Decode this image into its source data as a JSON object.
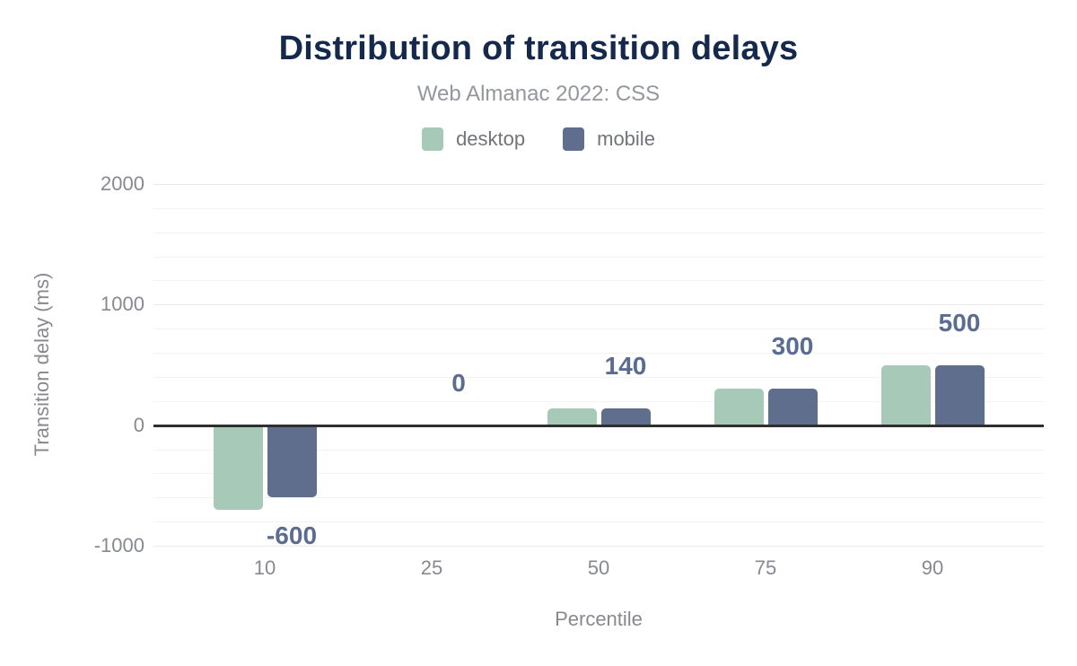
{
  "header": {
    "title": "Distribution of transition delays",
    "subtitle": "Web Almanac 2022: CSS"
  },
  "chart_data": {
    "type": "bar",
    "title": "Distribution of transition delays",
    "subtitle": "Web Almanac 2022: CSS",
    "categories": [
      "10",
      "25",
      "50",
      "75",
      "90"
    ],
    "series": [
      {
        "name": "desktop",
        "color": "#a6c9b8",
        "values": [
          -700,
          0,
          140,
          300,
          500
        ]
      },
      {
        "name": "mobile",
        "color": "#5f6e8c",
        "values": [
          -600,
          0,
          140,
          300,
          500
        ]
      }
    ],
    "bar_labels": [
      "-600",
      "0",
      "140",
      "300",
      "500"
    ],
    "bar_label_color": "#5a6c90",
    "xlabel": "Percentile",
    "ylabel": "Transition delay (ms)",
    "ylim": [
      -1000,
      2000
    ],
    "yticks": [
      2000,
      1000,
      0,
      -1000
    ],
    "ytick_labels": [
      "2000",
      "1000",
      "0",
      "-1000"
    ],
    "minor_gridline_step": 200,
    "grid": true,
    "legend_position": "top",
    "zero_line_color": "#2f2f2f"
  }
}
